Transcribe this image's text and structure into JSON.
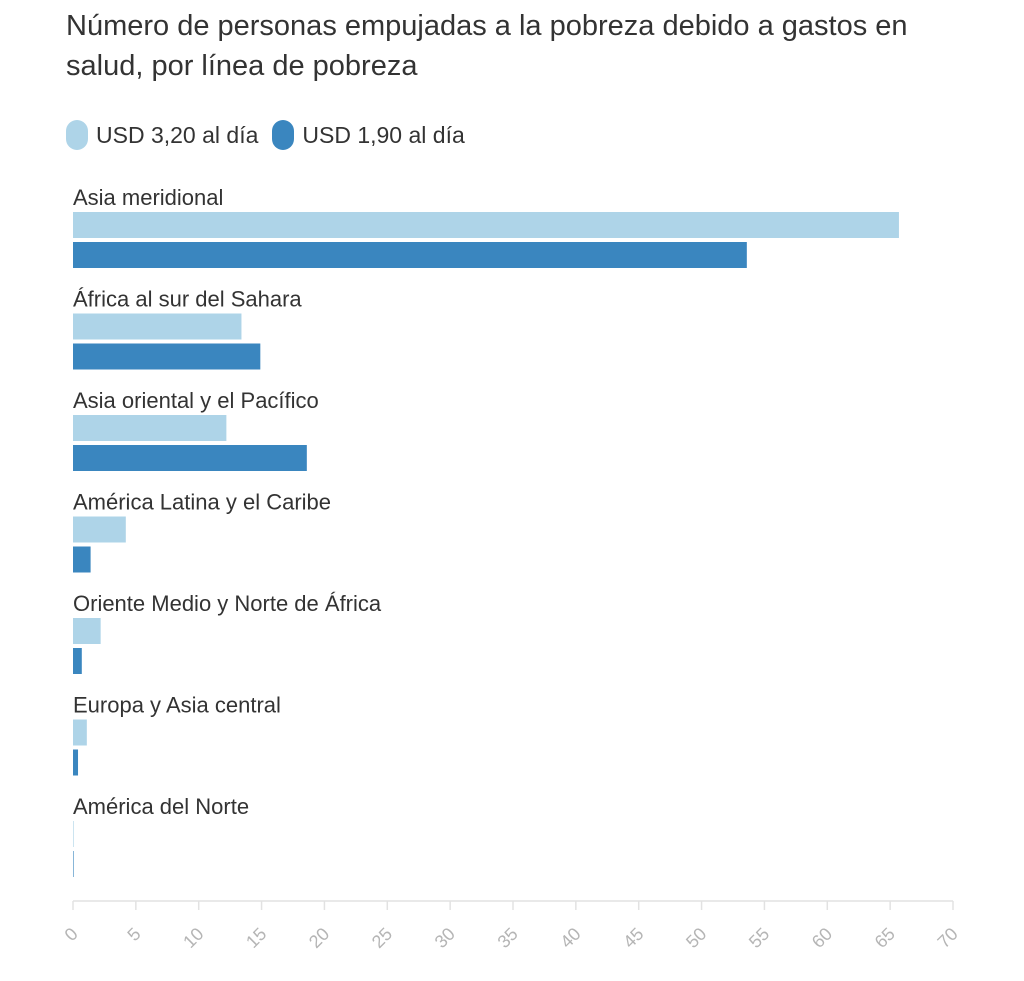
{
  "chart_data": {
    "type": "bar",
    "orientation": "horizontal",
    "title": "Número de personas empujadas a la pobreza debido a gastos en salud, por línea de pobreza",
    "categories": [
      "Asia meridional",
      "África al sur del Sahara",
      "Asia oriental y el Pacífico",
      "América Latina y el Caribe",
      "Oriente Medio y Norte de África",
      "Europa y Asia central",
      "América del Norte"
    ],
    "series": [
      {
        "name": "USD 3,20 al día",
        "color": "#aed4e8",
        "values": [
          65.7,
          13.4,
          12.2,
          4.2,
          2.2,
          1.1,
          0.05
        ]
      },
      {
        "name": "USD 1,90 al día",
        "color": "#3a86bf",
        "values": [
          53.6,
          14.9,
          18.6,
          1.4,
          0.7,
          0.4,
          0.02
        ]
      }
    ],
    "xlim": [
      0,
      70
    ],
    "xticks": [
      "0",
      "5",
      "10",
      "15",
      "20",
      "25",
      "30",
      "35",
      "40",
      "45",
      "50",
      "55",
      "60",
      "65",
      "70"
    ],
    "xlabel": "",
    "ylabel": "",
    "legend_position": "top-left",
    "grid": false
  }
}
